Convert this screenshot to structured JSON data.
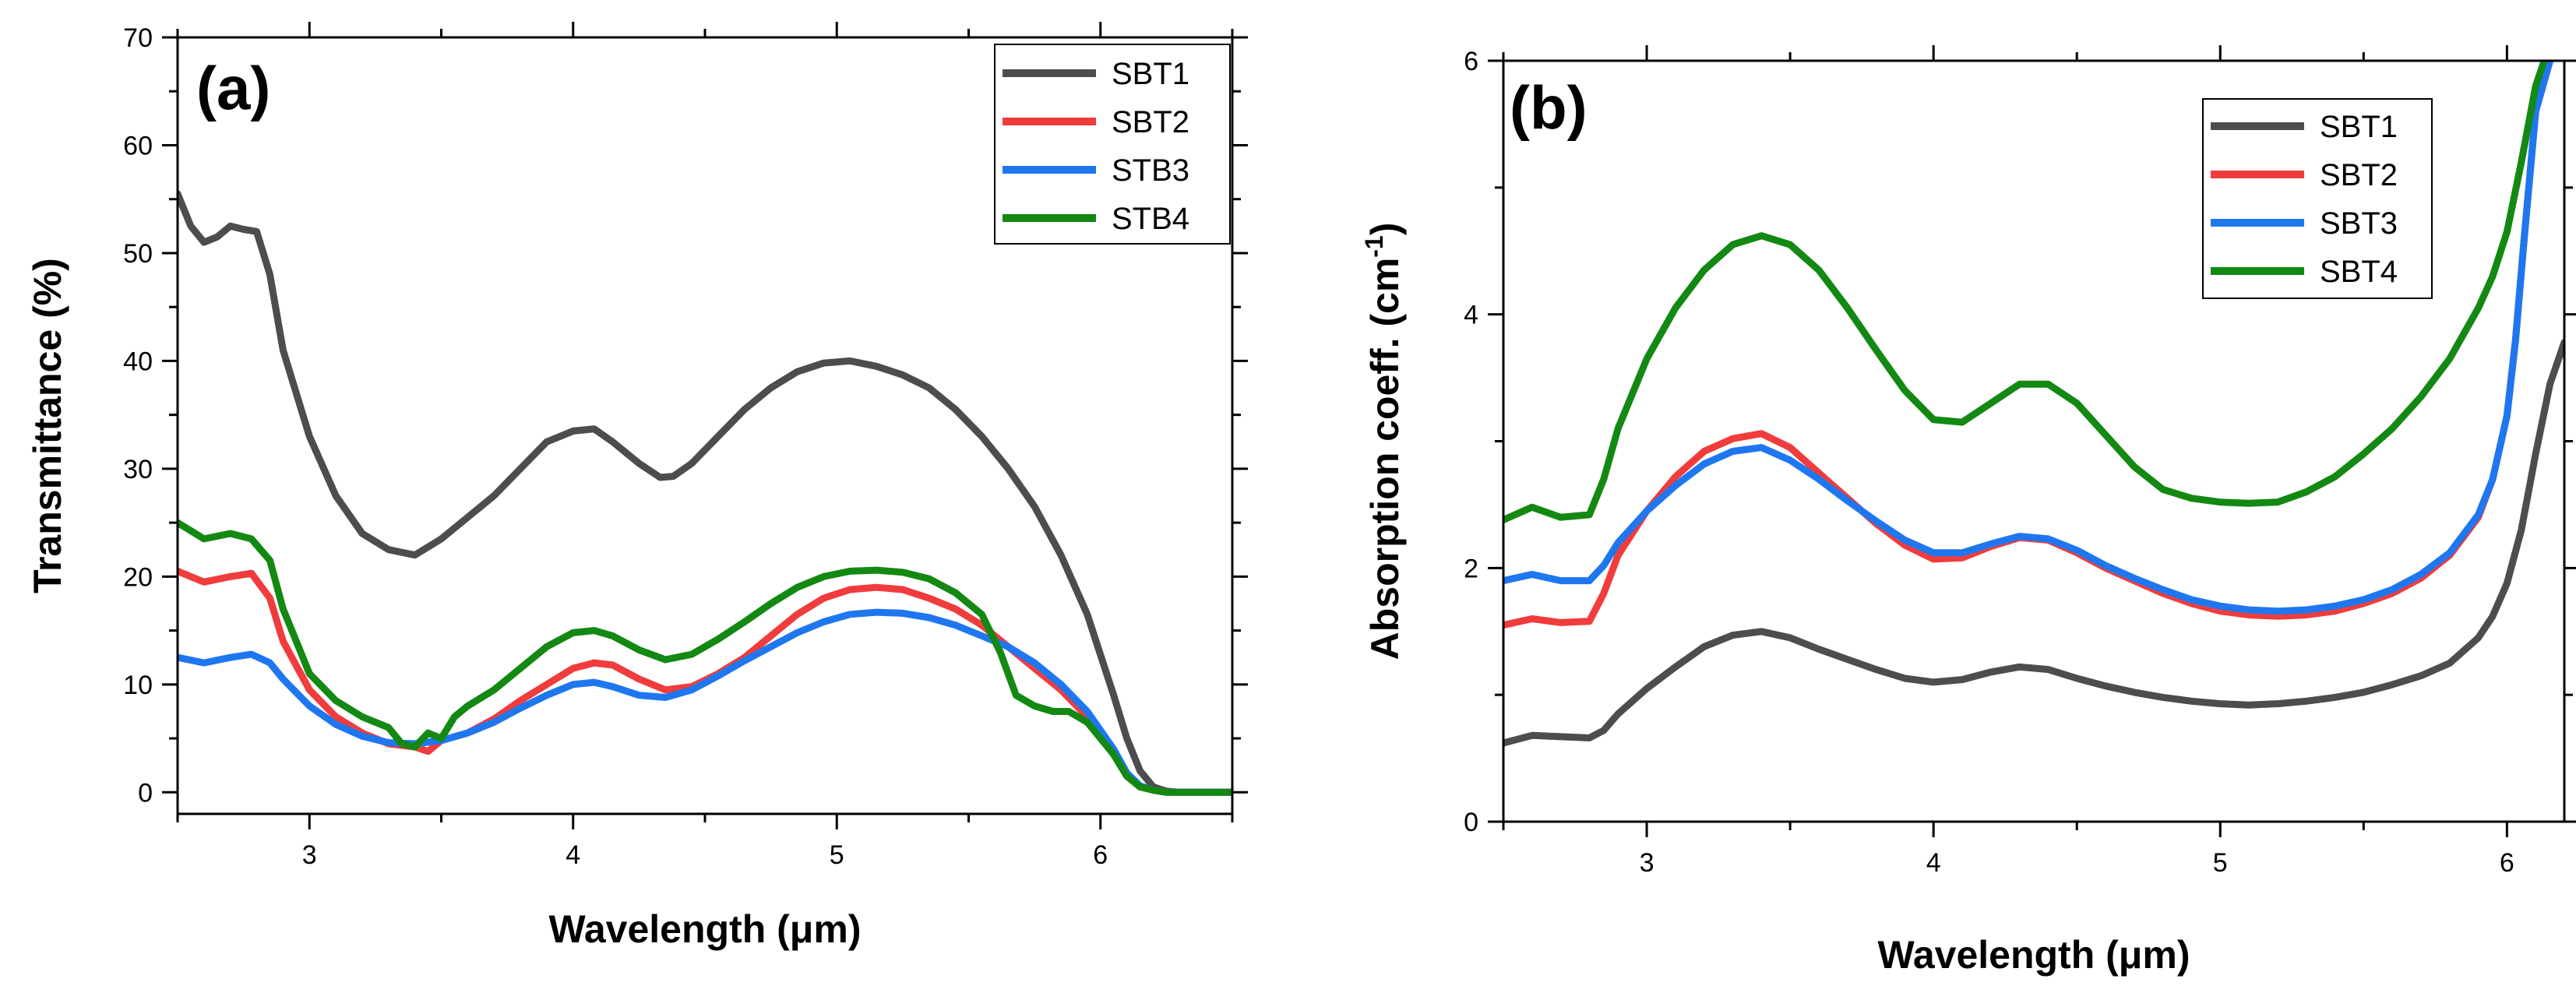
{
  "chart_data": [
    {
      "type": "line",
      "panel_label": "(a)",
      "title": "",
      "xlabel": "Wavelength (μm)",
      "ylabel": "Transmittance (%)",
      "xlim": [
        2.5,
        6.5
      ],
      "ylim": [
        -2,
        70
      ],
      "xticks": [
        3,
        4,
        5,
        6
      ],
      "yticks": [
        0,
        10,
        20,
        30,
        40,
        50,
        60,
        70
      ],
      "grid": false,
      "legend_position": "top-right",
      "series": [
        {
          "name": "SBT1",
          "color": "#4d4d4d",
          "x": [
            2.5,
            2.55,
            2.6,
            2.65,
            2.7,
            2.75,
            2.8,
            2.85,
            2.9,
            3.0,
            3.1,
            3.2,
            3.3,
            3.4,
            3.5,
            3.6,
            3.7,
            3.8,
            3.9,
            4.0,
            4.08,
            4.15,
            4.25,
            4.33,
            4.38,
            4.45,
            4.55,
            4.65,
            4.75,
            4.85,
            4.95,
            5.05,
            5.15,
            5.25,
            5.35,
            5.45,
            5.55,
            5.65,
            5.75,
            5.85,
            5.95,
            6.05,
            6.1,
            6.15,
            6.2,
            6.25,
            6.3,
            6.4,
            6.5
          ],
          "y": [
            55.5,
            52.5,
            51.0,
            51.5,
            52.5,
            52.2,
            52.0,
            48.0,
            41.0,
            33.0,
            27.5,
            24.0,
            22.5,
            22.0,
            23.5,
            25.5,
            27.5,
            30.0,
            32.5,
            33.5,
            33.7,
            32.5,
            30.5,
            29.2,
            29.3,
            30.5,
            33.0,
            35.5,
            37.5,
            39.0,
            39.8,
            40.0,
            39.5,
            38.7,
            37.5,
            35.5,
            33.0,
            30.0,
            26.5,
            22.0,
            16.5,
            9.0,
            5.0,
            2.0,
            0.5,
            0.1,
            0.0,
            0.0,
            0.0
          ]
        },
        {
          "name": "SBT2",
          "color": "#f03c3c",
          "x": [
            2.5,
            2.6,
            2.7,
            2.78,
            2.85,
            2.9,
            3.0,
            3.1,
            3.2,
            3.3,
            3.4,
            3.45,
            3.5,
            3.6,
            3.7,
            3.8,
            3.9,
            4.0,
            4.08,
            4.15,
            4.25,
            4.35,
            4.45,
            4.55,
            4.65,
            4.75,
            4.85,
            4.95,
            5.05,
            5.15,
            5.25,
            5.35,
            5.45,
            5.55,
            5.65,
            5.75,
            5.85,
            5.95,
            6.05,
            6.1,
            6.15,
            6.2,
            6.25,
            6.3,
            6.4,
            6.5
          ],
          "y": [
            20.5,
            19.5,
            20.0,
            20.3,
            18.0,
            14.0,
            9.5,
            7.0,
            5.5,
            4.5,
            4.2,
            3.8,
            4.8,
            5.5,
            6.8,
            8.5,
            10.0,
            11.5,
            12.0,
            11.8,
            10.5,
            9.5,
            9.8,
            11.0,
            12.5,
            14.5,
            16.5,
            18.0,
            18.8,
            19.0,
            18.8,
            18.0,
            17.0,
            15.5,
            13.5,
            11.5,
            9.5,
            7.0,
            3.5,
            1.5,
            0.5,
            0.2,
            0.0,
            0.0,
            0.0,
            0.0
          ]
        },
        {
          "name": "STB3",
          "color": "#1f77f0",
          "x": [
            2.5,
            2.6,
            2.7,
            2.78,
            2.85,
            2.9,
            3.0,
            3.1,
            3.2,
            3.3,
            3.4,
            3.5,
            3.6,
            3.7,
            3.8,
            3.9,
            4.0,
            4.08,
            4.15,
            4.25,
            4.35,
            4.45,
            4.55,
            4.65,
            4.75,
            4.85,
            4.95,
            5.05,
            5.15,
            5.25,
            5.35,
            5.45,
            5.55,
            5.65,
            5.75,
            5.85,
            5.95,
            6.05,
            6.1,
            6.15,
            6.2,
            6.25,
            6.3,
            6.4,
            6.5
          ],
          "y": [
            12.5,
            12.0,
            12.5,
            12.8,
            12.0,
            10.5,
            8.0,
            6.3,
            5.2,
            4.6,
            4.5,
            4.8,
            5.5,
            6.5,
            7.8,
            9.0,
            10.0,
            10.2,
            9.8,
            9.0,
            8.8,
            9.5,
            10.8,
            12.2,
            13.5,
            14.8,
            15.8,
            16.5,
            16.7,
            16.6,
            16.2,
            15.5,
            14.5,
            13.5,
            12.0,
            10.0,
            7.5,
            4.0,
            1.8,
            0.6,
            0.2,
            0.0,
            0.0,
            0.0,
            0.0
          ]
        },
        {
          "name": "STB4",
          "color": "#138913",
          "x": [
            2.5,
            2.6,
            2.7,
            2.78,
            2.85,
            2.9,
            3.0,
            3.1,
            3.2,
            3.3,
            3.35,
            3.4,
            3.45,
            3.5,
            3.55,
            3.6,
            3.7,
            3.8,
            3.9,
            4.0,
            4.08,
            4.15,
            4.25,
            4.35,
            4.45,
            4.55,
            4.65,
            4.75,
            4.85,
            4.95,
            5.05,
            5.15,
            5.25,
            5.35,
            5.45,
            5.55,
            5.62,
            5.68,
            5.75,
            5.82,
            5.88,
            5.95,
            6.05,
            6.1,
            6.15,
            6.2,
            6.25,
            6.3,
            6.4,
            6.5
          ],
          "y": [
            25.0,
            23.5,
            24.0,
            23.5,
            21.5,
            17.0,
            11.0,
            8.5,
            7.0,
            6.0,
            4.5,
            4.2,
            5.5,
            5.0,
            7.0,
            8.0,
            9.5,
            11.5,
            13.5,
            14.8,
            15.0,
            14.5,
            13.2,
            12.3,
            12.8,
            14.2,
            15.8,
            17.5,
            19.0,
            20.0,
            20.5,
            20.6,
            20.4,
            19.8,
            18.5,
            16.5,
            13.0,
            9.0,
            8.0,
            7.5,
            7.5,
            6.5,
            3.5,
            1.5,
            0.5,
            0.2,
            0.0,
            0.0,
            0.0,
            0.0
          ]
        }
      ]
    },
    {
      "type": "line",
      "panel_label": "(b)",
      "title": "",
      "xlabel": "Wavelength (μm)",
      "ylabel": "Absorption coeff. (cm",
      "ylabel_superscript": "-1",
      "ylabel_suffix": ")",
      "xlim": [
        2.5,
        6.2
      ],
      "ylim": [
        0,
        6
      ],
      "xticks": [
        3,
        4,
        5,
        6
      ],
      "yticks": [
        0,
        2,
        4,
        6
      ],
      "grid": false,
      "legend_position": "top-right",
      "series": [
        {
          "name": "SBT1",
          "color": "#4d4d4d",
          "x": [
            2.5,
            2.6,
            2.7,
            2.8,
            2.85,
            2.9,
            3.0,
            3.1,
            3.2,
            3.3,
            3.4,
            3.5,
            3.6,
            3.7,
            3.8,
            3.9,
            4.0,
            4.1,
            4.2,
            4.3,
            4.4,
            4.5,
            4.6,
            4.7,
            4.8,
            4.9,
            5.0,
            5.1,
            5.2,
            5.3,
            5.4,
            5.5,
            5.6,
            5.7,
            5.8,
            5.9,
            5.95,
            6.0,
            6.05,
            6.1,
            6.15,
            6.2
          ],
          "y": [
            0.62,
            0.68,
            0.67,
            0.66,
            0.72,
            0.85,
            1.05,
            1.22,
            1.38,
            1.47,
            1.5,
            1.45,
            1.36,
            1.28,
            1.2,
            1.13,
            1.1,
            1.12,
            1.18,
            1.22,
            1.2,
            1.13,
            1.07,
            1.02,
            0.98,
            0.95,
            0.93,
            0.92,
            0.93,
            0.95,
            0.98,
            1.02,
            1.08,
            1.15,
            1.25,
            1.45,
            1.62,
            1.88,
            2.3,
            2.9,
            3.45,
            3.78
          ]
        },
        {
          "name": "SBT2",
          "color": "#f03c3c",
          "x": [
            2.5,
            2.6,
            2.7,
            2.8,
            2.85,
            2.9,
            3.0,
            3.1,
            3.2,
            3.3,
            3.4,
            3.5,
            3.6,
            3.7,
            3.8,
            3.9,
            4.0,
            4.1,
            4.2,
            4.3,
            4.4,
            4.5,
            4.6,
            4.7,
            4.8,
            4.9,
            5.0,
            5.1,
            5.2,
            5.3,
            5.4,
            5.5,
            5.6,
            5.7,
            5.8,
            5.9,
            5.95,
            6.0,
            6.03,
            6.06,
            6.1,
            6.15
          ],
          "y": [
            1.55,
            1.6,
            1.57,
            1.58,
            1.8,
            2.1,
            2.45,
            2.72,
            2.92,
            3.02,
            3.06,
            2.95,
            2.75,
            2.55,
            2.35,
            2.18,
            2.07,
            2.08,
            2.17,
            2.24,
            2.22,
            2.12,
            2.0,
            1.9,
            1.8,
            1.72,
            1.66,
            1.63,
            1.62,
            1.63,
            1.66,
            1.72,
            1.8,
            1.92,
            2.1,
            2.4,
            2.7,
            3.2,
            3.8,
            4.6,
            5.6,
            6.0
          ]
        },
        {
          "name": "SBT3",
          "color": "#1f77f0",
          "x": [
            2.5,
            2.6,
            2.7,
            2.8,
            2.85,
            2.9,
            3.0,
            3.1,
            3.2,
            3.3,
            3.4,
            3.5,
            3.6,
            3.7,
            3.8,
            3.9,
            4.0,
            4.1,
            4.2,
            4.3,
            4.4,
            4.5,
            4.6,
            4.7,
            4.8,
            4.9,
            5.0,
            5.1,
            5.2,
            5.3,
            5.4,
            5.5,
            5.6,
            5.7,
            5.8,
            5.9,
            5.95,
            6.0,
            6.03,
            6.06,
            6.1,
            6.15
          ],
          "y": [
            1.9,
            1.95,
            1.9,
            1.9,
            2.02,
            2.2,
            2.45,
            2.65,
            2.82,
            2.92,
            2.95,
            2.85,
            2.7,
            2.53,
            2.37,
            2.22,
            2.12,
            2.12,
            2.19,
            2.25,
            2.23,
            2.14,
            2.02,
            1.92,
            1.83,
            1.75,
            1.7,
            1.67,
            1.66,
            1.67,
            1.7,
            1.75,
            1.83,
            1.95,
            2.12,
            2.42,
            2.7,
            3.2,
            3.8,
            4.6,
            5.6,
            6.0
          ]
        },
        {
          "name": "SBT4",
          "color": "#138913",
          "x": [
            2.5,
            2.6,
            2.7,
            2.8,
            2.85,
            2.9,
            3.0,
            3.1,
            3.2,
            3.3,
            3.4,
            3.5,
            3.6,
            3.7,
            3.8,
            3.9,
            4.0,
            4.1,
            4.2,
            4.3,
            4.4,
            4.5,
            4.6,
            4.7,
            4.8,
            4.9,
            5.0,
            5.1,
            5.2,
            5.3,
            5.4,
            5.5,
            5.6,
            5.7,
            5.8,
            5.9,
            5.95,
            6.0,
            6.05,
            6.1,
            6.13
          ],
          "y": [
            2.38,
            2.48,
            2.4,
            2.42,
            2.7,
            3.1,
            3.65,
            4.05,
            4.35,
            4.55,
            4.62,
            4.55,
            4.35,
            4.05,
            3.72,
            3.4,
            3.17,
            3.15,
            3.3,
            3.45,
            3.45,
            3.3,
            3.05,
            2.8,
            2.62,
            2.55,
            2.52,
            2.51,
            2.52,
            2.6,
            2.72,
            2.9,
            3.1,
            3.35,
            3.65,
            4.05,
            4.3,
            4.65,
            5.2,
            5.8,
            6.0
          ]
        }
      ]
    }
  ]
}
